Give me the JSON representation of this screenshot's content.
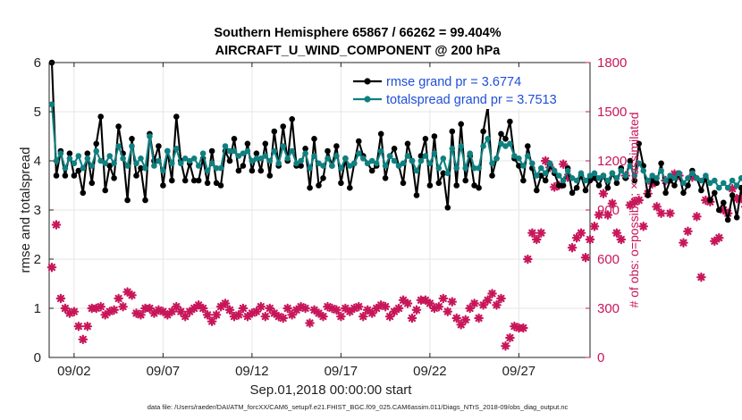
{
  "chart_data": {
    "type": "line",
    "title": "Southern Hemisphere 65867 / 66262 = 99.404%",
    "subtitle": "AIRCRAFT_U_WIND_COMPONENT @ 200 hPa",
    "xlabel": "Sep.01,2018 00:00:00 start",
    "ylabel": "rmse and totalspread",
    "ylabel_right": "# of obs: o=possible; ×=assimilated",
    "footer": "data file: /Users/raeder/DAI/ATM_forcXX/CAM6_setup/f.e21.FHIST_BGC.f09_025.CAM6assim.011/Diags_NTrS_2018-09/obs_diag_output.nc",
    "xlim": [
      0.6,
      31.0
    ],
    "ylim": [
      0,
      6
    ],
    "ylim_right": [
      0,
      1800
    ],
    "x_ticks": [
      {
        "value": 2,
        "label": "09/02"
      },
      {
        "value": 7,
        "label": "09/07"
      },
      {
        "value": 12,
        "label": "09/12"
      },
      {
        "value": 17,
        "label": "09/17"
      },
      {
        "value": 22,
        "label": "09/22"
      },
      {
        "value": 27,
        "label": "09/27"
      }
    ],
    "y_ticks": [
      0,
      1,
      2,
      3,
      4,
      5,
      6
    ],
    "y_ticks_right": [
      0,
      300,
      600,
      900,
      1200,
      1500,
      1800
    ],
    "grid": true,
    "legend_position": "top-right",
    "colors": {
      "rmse": "#000000",
      "spread": "#0f8080",
      "obs": "#c8165a",
      "legend_text": "#1f4fd6"
    },
    "series": [
      {
        "name": "rmse grand pr = 3.6774",
        "axis": "left",
        "x_start": 0.75,
        "x_step": 0.25,
        "values": [
          6.0,
          3.7,
          4.2,
          3.7,
          4.15,
          3.7,
          3.8,
          3.35,
          4.15,
          3.55,
          4.35,
          4.9,
          3.4,
          3.9,
          3.65,
          4.7,
          4.15,
          3.2,
          4.45,
          3.7,
          3.85,
          3.2,
          4.55,
          4.0,
          4.3,
          3.5,
          4.2,
          3.6,
          4.9,
          4.0,
          3.6,
          3.95,
          3.6,
          3.6,
          4.05,
          3.55,
          4.2,
          3.55,
          3.5,
          4.2,
          4.0,
          4.45,
          3.8,
          3.9,
          4.35,
          3.8,
          4.15,
          3.8,
          4.35,
          3.7,
          4.6,
          3.9,
          4.7,
          4.0,
          4.85,
          3.9,
          3.9,
          4.25,
          3.45,
          4.45,
          3.5,
          3.65,
          4.2,
          3.9,
          4.3,
          3.55,
          4.05,
          3.45,
          3.95,
          4.4,
          4.1,
          3.95,
          3.8,
          3.9,
          4.55,
          3.65,
          4.1,
          4.25,
          3.9,
          3.55,
          4.35,
          4.0,
          3.3,
          4.1,
          4.45,
          3.5,
          4.5,
          3.55,
          3.75,
          3.05,
          4.6,
          3.5,
          4.75,
          3.6,
          4.1,
          3.5,
          3.45,
          4.6,
          5.1,
          3.7,
          4.05,
          4.55,
          4.45,
          4.8,
          4.05,
          3.9,
          3.6,
          4.3,
          3.85,
          3.4,
          3.7,
          3.6,
          3.9,
          3.75,
          3.5,
          3.5,
          3.85,
          3.35,
          3.45,
          3.7,
          3.4,
          3.6,
          3.65,
          3.5,
          3.7,
          3.45,
          3.75,
          3.55,
          3.85,
          3.65,
          4.0,
          3.6,
          4.35,
          3.9,
          3.3,
          3.6,
          3.55,
          3.95,
          3.35,
          3.6,
          3.5,
          3.75,
          3.35,
          3.5,
          3.8,
          3.65,
          3.4,
          3.65,
          3.2,
          3.35,
          3.0,
          3.15,
          2.8,
          3.3,
          2.85,
          3.45,
          3.0,
          3.2,
          3.25,
          3.25,
          3.45,
          3.35,
          3.1,
          3.5,
          3.2,
          3.6,
          3.1,
          3.55,
          3.25,
          3.65,
          3.2,
          3.5,
          3.3,
          3.6,
          3.55,
          3.35,
          3.4,
          3.0,
          3.65,
          3.9,
          4.05,
          3.6,
          3.8,
          3.85,
          3.7,
          3.65,
          4.0,
          3.6,
          3.95,
          3.55,
          3.75,
          3.75,
          3.7,
          3.5
        ]
      },
      {
        "name": "totalspread grand pr = 3.7513",
        "axis": "left",
        "x_start": 0.75,
        "x_step": 0.25,
        "values": [
          5.15,
          4.0,
          4.15,
          3.85,
          4.05,
          3.95,
          4.1,
          3.85,
          4.05,
          3.9,
          4.2,
          4.0,
          3.95,
          4.1,
          3.95,
          4.3,
          4.05,
          3.9,
          4.3,
          3.95,
          4.05,
          3.85,
          4.5,
          3.9,
          4.0,
          3.8,
          4.2,
          3.95,
          4.25,
          3.95,
          4.05,
          4.0,
          4.05,
          3.9,
          4.15,
          3.8,
          3.95,
          3.85,
          3.85,
          4.3,
          4.2,
          4.2,
          4.1,
          4.15,
          4.2,
          4.0,
          4.05,
          4.05,
          4.1,
          4.0,
          4.2,
          3.95,
          4.3,
          4.05,
          4.2,
          3.95,
          4.0,
          4.15,
          3.85,
          4.1,
          3.95,
          3.9,
          4.05,
          3.9,
          4.1,
          3.85,
          4.05,
          3.9,
          3.95,
          4.15,
          4.05,
          3.95,
          4.0,
          3.95,
          4.2,
          3.9,
          4.1,
          4.0,
          3.9,
          3.95,
          4.1,
          4.0,
          3.8,
          4.0,
          4.1,
          3.95,
          4.15,
          3.85,
          4.05,
          3.75,
          4.25,
          3.85,
          4.3,
          3.85,
          4.15,
          3.85,
          3.85,
          4.3,
          4.45,
          3.95,
          4.05,
          4.35,
          4.3,
          4.35,
          4.1,
          4.05,
          3.9,
          4.1,
          3.95,
          3.7,
          3.85,
          3.75,
          3.95,
          3.8,
          3.7,
          3.6,
          3.8,
          3.65,
          3.6,
          3.75,
          3.6,
          3.7,
          3.75,
          3.65,
          3.7,
          3.6,
          3.75,
          3.65,
          3.8,
          3.7,
          3.9,
          3.7,
          3.95,
          3.8,
          3.6,
          3.7,
          3.65,
          3.8,
          3.6,
          3.7,
          3.65,
          3.75,
          3.55,
          3.65,
          3.75,
          3.65,
          3.6,
          3.7,
          3.55,
          3.6,
          3.45,
          3.55,
          3.45,
          3.6,
          3.5,
          3.65,
          3.55,
          3.6,
          3.6,
          3.6,
          3.65,
          3.6,
          3.55,
          3.65,
          3.55,
          3.7,
          3.55,
          3.7,
          3.6,
          3.75,
          3.6,
          3.65,
          3.6,
          3.7,
          3.7,
          3.6,
          3.65,
          3.5,
          3.7,
          3.85,
          3.85,
          3.7,
          3.75,
          3.8,
          3.75,
          3.75,
          3.85,
          3.75,
          3.8,
          3.7,
          3.75,
          3.75,
          3.7,
          3.65
        ]
      },
      {
        "name": "# of obs assimilated",
        "axis": "right",
        "x_start": 0.75,
        "x_step": 0.25,
        "values": [
          550,
          810,
          360,
          300,
          270,
          280,
          190,
          110,
          190,
          300,
          300,
          310,
          260,
          280,
          290,
          360,
          310,
          400,
          380,
          270,
          260,
          300,
          300,
          270,
          290,
          280,
          260,
          280,
          310,
          280,
          250,
          280,
          300,
          320,
          300,
          260,
          220,
          260,
          310,
          330,
          290,
          250,
          260,
          300,
          250,
          270,
          280,
          310,
          250,
          300,
          270,
          250,
          240,
          300,
          260,
          290,
          310,
          300,
          210,
          290,
          270,
          250,
          310,
          300,
          290,
          250,
          300,
          280,
          300,
          310,
          250,
          290,
          270,
          300,
          320,
          310,
          250,
          280,
          300,
          350,
          330,
          240,
          290,
          350,
          350,
          330,
          300,
          310,
          360,
          280,
          340,
          240,
          200,
          230,
          300,
          330,
          240,
          320,
          350,
          390,
          320,
          360,
          70,
          120,
          190,
          180,
          180,
          600,
          760,
          720,
          760,
          1200,
          1160,
          1040,
          1050,
          1180,
          1100,
          670,
          730,
          760,
          610,
          720,
          800,
          870,
          1000,
          870,
          940,
          760,
          720,
          1110,
          930,
          950,
          960,
          800,
          1000,
          1060,
          920,
          880,
          1080,
          880,
          1120,
          1110,
          700,
          770,
          1100,
          860,
          490,
          960,
          950,
          710,
          730,
          900,
          880,
          1030,
          970,
          970,
          920,
          1150,
          1000,
          1010,
          1000,
          820,
          770,
          870,
          880,
          910,
          850,
          890,
          820,
          710,
          1180,
          690,
          860,
          1060,
          830,
          810,
          680,
          790,
          740,
          730,
          860,
          1160,
          910,
          850,
          800,
          760,
          890,
          900,
          560,
          620,
          930,
          960,
          920,
          700,
          0
        ]
      }
    ]
  }
}
